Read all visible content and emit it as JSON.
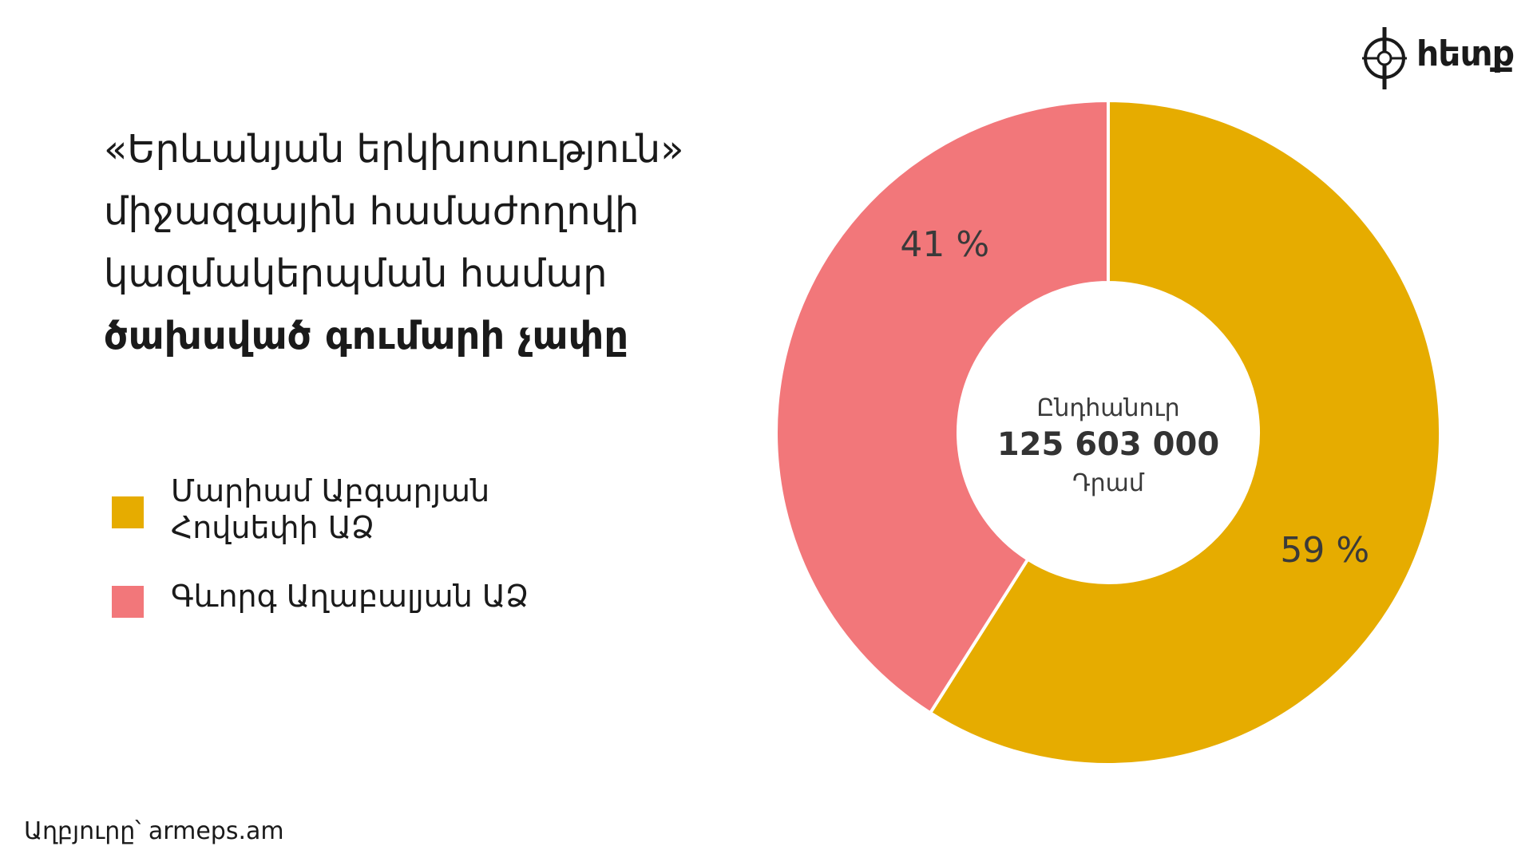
{
  "title": {
    "lines": [
      "«Երևանյան երկխոսություն»",
      "միջազգային համաժողովի",
      "կազմակերպման համար"
    ],
    "bold_line": "ծախսված գումարի չափը"
  },
  "logo": {
    "text": "հետք"
  },
  "source": "Աղբյուրը՝ armeps.am",
  "center": {
    "top": "Ընդհանուր",
    "total": "125 603 000",
    "unit": "Դրամ"
  },
  "legend": [
    {
      "lines": [
        "Մարիամ Աբգարյան",
        "Հովսեփի ԱՁ"
      ],
      "color": "#E6AC00"
    },
    {
      "lines": [
        "Գևորգ Աղաբալյան ԱՁ"
      ],
      "color": "#F2777A"
    }
  ],
  "chart_data": {
    "type": "pie",
    "donut": true,
    "categories": [
      "Մարիամ Աբգարյան Հովսեփի ԱՁ",
      "Գևորգ Աղաբալյան ԱՁ"
    ],
    "values": [
      59,
      41
    ],
    "data_labels": [
      "59 %",
      "41 %"
    ],
    "colors": [
      "#E6AC00",
      "#F2777A"
    ],
    "start_angle_deg": 0,
    "direction": "clockwise",
    "legend": "left"
  }
}
